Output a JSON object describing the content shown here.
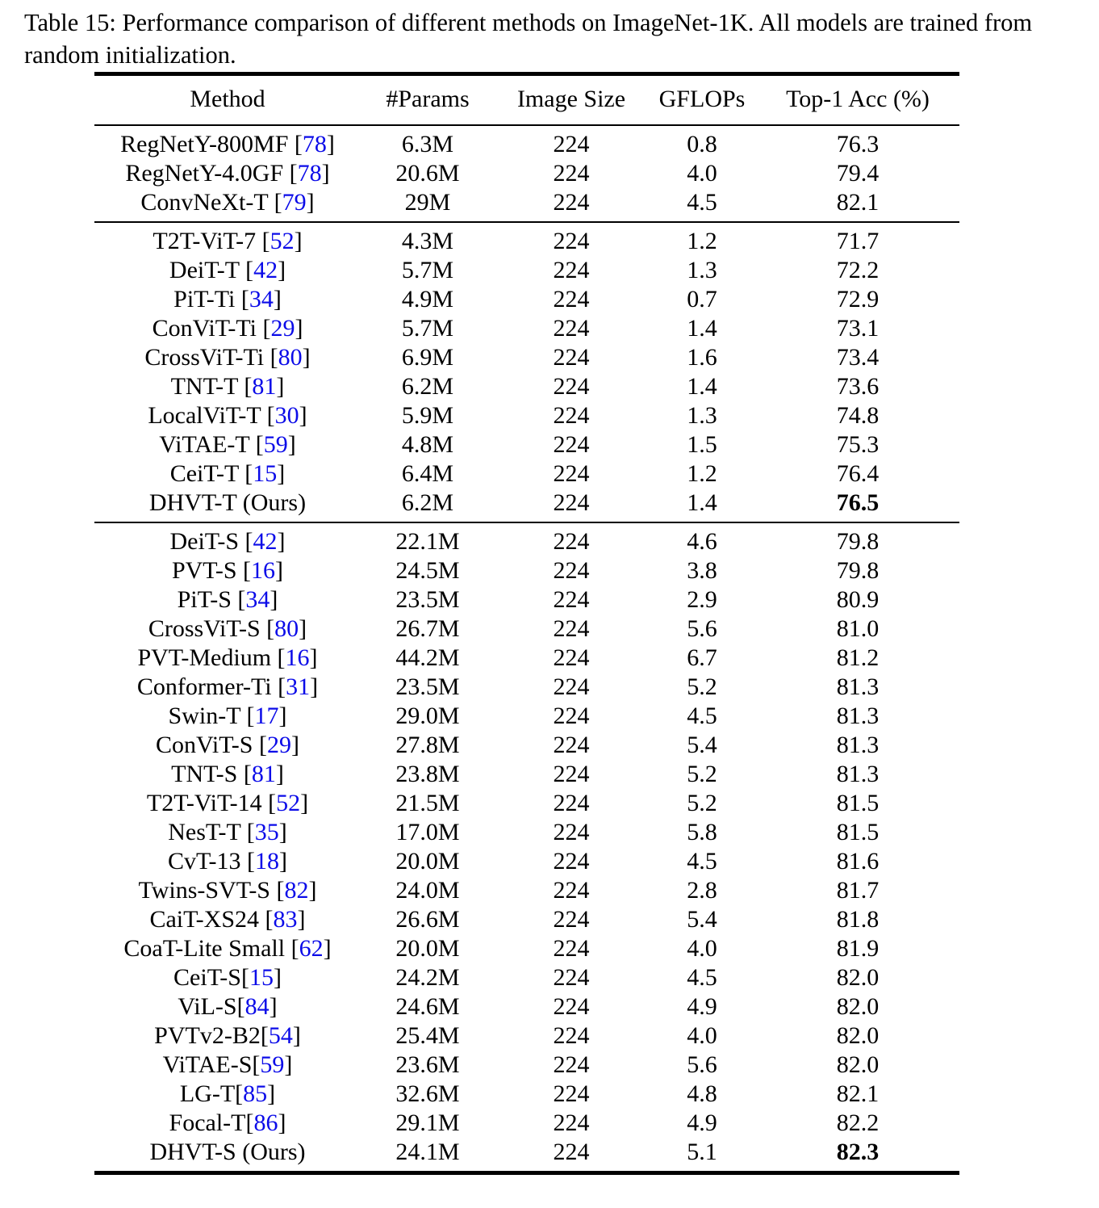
{
  "caption": "Table 15: Performance comparison of different methods on ImageNet-1K. All models are trained from random initialization.",
  "colors": {
    "citation_blue": "#0b0be8",
    "text": "#000000",
    "background": "#ffffff"
  },
  "table": {
    "headers": [
      "Method",
      "#Params",
      "Image Size",
      "GFLOPs",
      "Top-1 Acc (%)"
    ],
    "sections": [
      {
        "rows": [
          {
            "method": "RegNetY-800MF",
            "cite": "78",
            "cite_space": true,
            "params": "6.3M",
            "size": "224",
            "gflops": "0.8",
            "acc": "76.3",
            "acc_bold": false
          },
          {
            "method": "RegNetY-4.0GF",
            "cite": "78",
            "cite_space": true,
            "params": "20.6M",
            "size": "224",
            "gflops": "4.0",
            "acc": "79.4",
            "acc_bold": false
          },
          {
            "method": "ConvNeXt-T",
            "cite": "79",
            "cite_space": true,
            "params": "29M",
            "size": "224",
            "gflops": "4.5",
            "acc": "82.1",
            "acc_bold": false
          }
        ]
      },
      {
        "rows": [
          {
            "method": "T2T-ViT-7",
            "cite": "52",
            "cite_space": true,
            "params": "4.3M",
            "size": "224",
            "gflops": "1.2",
            "acc": "71.7",
            "acc_bold": false
          },
          {
            "method": "DeiT-T",
            "cite": "42",
            "cite_space": true,
            "params": "5.7M",
            "size": "224",
            "gflops": "1.3",
            "acc": "72.2",
            "acc_bold": false
          },
          {
            "method": "PiT-Ti",
            "cite": "34",
            "cite_space": true,
            "params": "4.9M",
            "size": "224",
            "gflops": "0.7",
            "acc": "72.9",
            "acc_bold": false
          },
          {
            "method": "ConViT-Ti",
            "cite": "29",
            "cite_space": true,
            "params": "5.7M",
            "size": "224",
            "gflops": "1.4",
            "acc": "73.1",
            "acc_bold": false
          },
          {
            "method": "CrossViT-Ti",
            "cite": "80",
            "cite_space": true,
            "params": "6.9M",
            "size": "224",
            "gflops": "1.6",
            "acc": "73.4",
            "acc_bold": false
          },
          {
            "method": "TNT-T",
            "cite": "81",
            "cite_space": true,
            "params": "6.2M",
            "size": "224",
            "gflops": "1.4",
            "acc": "73.6",
            "acc_bold": false
          },
          {
            "method": "LocalViT-T",
            "cite": "30",
            "cite_space": true,
            "params": "5.9M",
            "size": "224",
            "gflops": "1.3",
            "acc": "74.8",
            "acc_bold": false
          },
          {
            "method": "ViTAE-T",
            "cite": "59",
            "cite_space": true,
            "params": "4.8M",
            "size": "224",
            "gflops": "1.5",
            "acc": "75.3",
            "acc_bold": false
          },
          {
            "method": "CeiT-T",
            "cite": "15",
            "cite_space": true,
            "params": "6.4M",
            "size": "224",
            "gflops": "1.2",
            "acc": "76.4",
            "acc_bold": false
          },
          {
            "method": "DHVT-T (Ours)",
            "cite": null,
            "cite_space": false,
            "params": "6.2M",
            "size": "224",
            "gflops": "1.4",
            "acc": "76.5",
            "acc_bold": true
          }
        ]
      },
      {
        "rows": [
          {
            "method": "DeiT-S",
            "cite": "42",
            "cite_space": true,
            "params": "22.1M",
            "size": "224",
            "gflops": "4.6",
            "acc": "79.8",
            "acc_bold": false
          },
          {
            "method": "PVT-S",
            "cite": "16",
            "cite_space": true,
            "params": "24.5M",
            "size": "224",
            "gflops": "3.8",
            "acc": "79.8",
            "acc_bold": false
          },
          {
            "method": "PiT-S",
            "cite": "34",
            "cite_space": true,
            "params": "23.5M",
            "size": "224",
            "gflops": "2.9",
            "acc": "80.9",
            "acc_bold": false
          },
          {
            "method": "CrossViT-S",
            "cite": "80",
            "cite_space": true,
            "params": "26.7M",
            "size": "224",
            "gflops": "5.6",
            "acc": "81.0",
            "acc_bold": false
          },
          {
            "method": "PVT-Medium",
            "cite": "16",
            "cite_space": true,
            "params": "44.2M",
            "size": "224",
            "gflops": "6.7",
            "acc": "81.2",
            "acc_bold": false
          },
          {
            "method": "Conformer-Ti",
            "cite": "31",
            "cite_space": true,
            "params": "23.5M",
            "size": "224",
            "gflops": "5.2",
            "acc": "81.3",
            "acc_bold": false
          },
          {
            "method": "Swin-T",
            "cite": "17",
            "cite_space": true,
            "params": "29.0M",
            "size": "224",
            "gflops": "4.5",
            "acc": "81.3",
            "acc_bold": false
          },
          {
            "method": "ConViT-S",
            "cite": "29",
            "cite_space": true,
            "params": "27.8M",
            "size": "224",
            "gflops": "5.4",
            "acc": "81.3",
            "acc_bold": false
          },
          {
            "method": "TNT-S",
            "cite": "81",
            "cite_space": true,
            "params": "23.8M",
            "size": "224",
            "gflops": "5.2",
            "acc": "81.3",
            "acc_bold": false
          },
          {
            "method": "T2T-ViT-14",
            "cite": "52",
            "cite_space": true,
            "params": "21.5M",
            "size": "224",
            "gflops": "5.2",
            "acc": "81.5",
            "acc_bold": false
          },
          {
            "method": "NesT-T",
            "cite": "35",
            "cite_space": true,
            "params": "17.0M",
            "size": "224",
            "gflops": "5.8",
            "acc": "81.5",
            "acc_bold": false
          },
          {
            "method": "CvT-13",
            "cite": "18",
            "cite_space": true,
            "params": "20.0M",
            "size": "224",
            "gflops": "4.5",
            "acc": "81.6",
            "acc_bold": false
          },
          {
            "method": "Twins-SVT-S",
            "cite": "82",
            "cite_space": true,
            "params": "24.0M",
            "size": "224",
            "gflops": "2.8",
            "acc": "81.7",
            "acc_bold": false
          },
          {
            "method": "CaiT-XS24",
            "cite": "83",
            "cite_space": true,
            "params": "26.6M",
            "size": "224",
            "gflops": "5.4",
            "acc": "81.8",
            "acc_bold": false
          },
          {
            "method": "CoaT-Lite Small",
            "cite": "62",
            "cite_space": true,
            "params": "20.0M",
            "size": "224",
            "gflops": "4.0",
            "acc": "81.9",
            "acc_bold": false
          },
          {
            "method": "CeiT-S",
            "cite": "15",
            "cite_space": false,
            "params": "24.2M",
            "size": "224",
            "gflops": "4.5",
            "acc": "82.0",
            "acc_bold": false
          },
          {
            "method": "ViL-S",
            "cite": "84",
            "cite_space": false,
            "params": "24.6M",
            "size": "224",
            "gflops": "4.9",
            "acc": "82.0",
            "acc_bold": false
          },
          {
            "method": "PVTv2-B2",
            "cite": "54",
            "cite_space": false,
            "params": "25.4M",
            "size": "224",
            "gflops": "4.0",
            "acc": "82.0",
            "acc_bold": false
          },
          {
            "method": "ViTAE-S",
            "cite": "59",
            "cite_space": false,
            "params": "23.6M",
            "size": "224",
            "gflops": "5.6",
            "acc": "82.0",
            "acc_bold": false
          },
          {
            "method": "LG-T",
            "cite": "85",
            "cite_space": false,
            "params": "32.6M",
            "size": "224",
            "gflops": "4.8",
            "acc": "82.1",
            "acc_bold": false
          },
          {
            "method": "Focal-T",
            "cite": "86",
            "cite_space": false,
            "params": "29.1M",
            "size": "224",
            "gflops": "4.9",
            "acc": "82.2",
            "acc_bold": false
          },
          {
            "method": "DHVT-S (Ours)",
            "cite": null,
            "cite_space": false,
            "params": "24.1M",
            "size": "224",
            "gflops": "5.1",
            "acc": "82.3",
            "acc_bold": true
          }
        ]
      }
    ]
  }
}
